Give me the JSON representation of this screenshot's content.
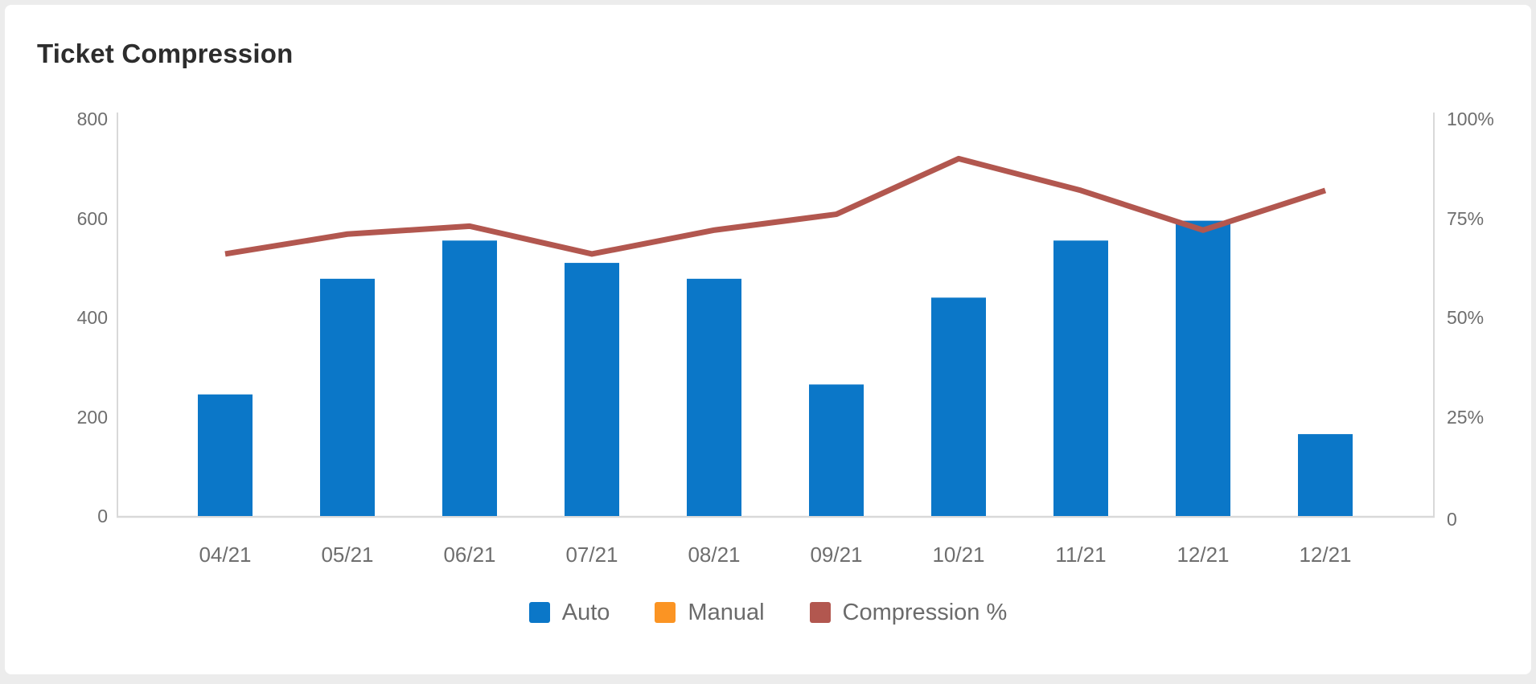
{
  "card": {
    "title": "Ticket Compression"
  },
  "chart_data": {
    "type": "combo",
    "title": "Ticket Compression",
    "categories": [
      "04/21",
      "05/21",
      "06/21",
      "07/21",
      "08/21",
      "09/21",
      "10/21",
      "11/21",
      "12/21",
      "12/21"
    ],
    "series": [
      {
        "name": "Auto",
        "type": "bar",
        "axis": "left",
        "color": "#0b77c8",
        "values": [
          245,
          478,
          555,
          510,
          478,
          265,
          440,
          555,
          595,
          165
        ]
      },
      {
        "name": "Manual",
        "type": "bar",
        "axis": "left",
        "color": "#fb9423",
        "values": [
          0,
          0,
          0,
          0,
          0,
          0,
          0,
          0,
          0,
          0
        ]
      },
      {
        "name": "Compression %",
        "type": "line",
        "axis": "right",
        "color": "#b2574f",
        "values": [
          66,
          71,
          73,
          66,
          72,
          76,
          90,
          82,
          72,
          82
        ]
      }
    ],
    "left_axis": {
      "min": 0,
      "max": 800,
      "tick_values": [
        800,
        600,
        400,
        200,
        0
      ],
      "ticks": [
        "800",
        "600",
        "400",
        "200",
        "0"
      ]
    },
    "right_axis": {
      "min": 0,
      "max": 100,
      "tick_values": [
        100,
        75,
        50,
        25,
        0
      ],
      "ticks": [
        "100%",
        "75%",
        "50%",
        "25%",
        "0"
      ]
    },
    "legend": [
      {
        "label": "Auto",
        "color": "#0b77c8"
      },
      {
        "label": "Manual",
        "color": "#fb9423"
      },
      {
        "label": "Compression %",
        "color": "#b2574f"
      }
    ],
    "legend_position": "bottom",
    "grid": false,
    "axis_line_color": "#d9d9d9",
    "text_color": "#6e6e6e"
  }
}
